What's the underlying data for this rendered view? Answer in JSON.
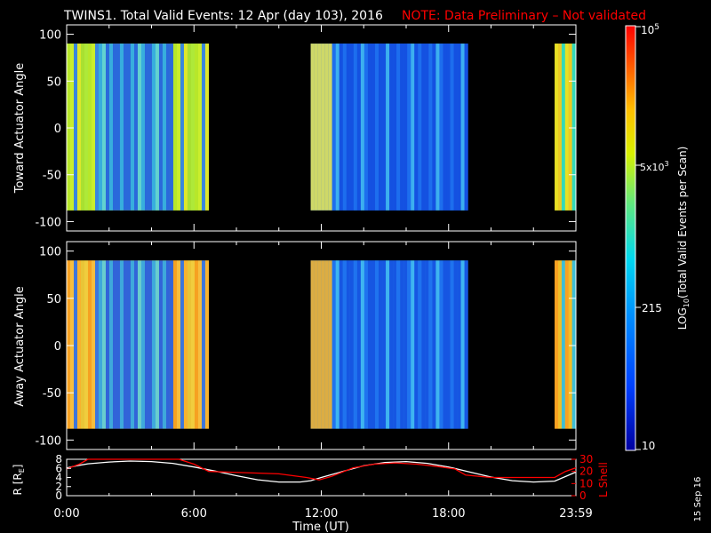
{
  "header": {
    "title": "TWINS1. Total Valid Events: 12 Apr (day 103), 2016",
    "note": "NOTE: Data Preliminary – Not validated"
  },
  "stamp": "15 Sep 16",
  "colors": {
    "background": "#000000",
    "axis": "#ffffff",
    "note": "#ff0000",
    "radius_line": "#ffffff",
    "lshell_line": "#ff0000"
  },
  "chart_data": [
    {
      "type": "heatmap",
      "panel": "toward",
      "ylabel": "Toward Actuator Angle",
      "xlim_hours": [
        0,
        24
      ],
      "ylim": [
        -110,
        110
      ],
      "yticks": [
        -100,
        -50,
        0,
        50,
        100
      ],
      "data_y_range": [
        -88,
        90
      ],
      "data_time_ranges": [
        [
          "0:00",
          "6:42"
        ],
        [
          "11:30",
          "18:55"
        ],
        [
          "23:00",
          "23:59"
        ]
      ]
    },
    {
      "type": "heatmap",
      "panel": "away",
      "ylabel": "Away Actuator Angle",
      "xlim_hours": [
        0,
        24
      ],
      "ylim": [
        -110,
        110
      ],
      "yticks": [
        -100,
        -50,
        0,
        50,
        100
      ],
      "data_y_range": [
        -88,
        90
      ],
      "data_time_ranges": [
        [
          "0:00",
          "6:42"
        ],
        [
          "11:30",
          "18:55"
        ],
        [
          "23:00",
          "23:59"
        ]
      ]
    },
    {
      "type": "line",
      "panel": "orbit",
      "xlabel": "Time (UT)",
      "xticks": [
        "0:00",
        "6:00",
        "12:00",
        "18:00",
        "23:59"
      ],
      "ylabel_left": "R [R",
      "ylabel_left_sub": "E",
      "ylabel_left_end": "]",
      "ylim_left": [
        0,
        8
      ],
      "yticks_left": [
        0,
        2,
        4,
        6,
        8
      ],
      "ylabel_right": "L Shell",
      "ylim_right": [
        0,
        30
      ],
      "yticks_right": [
        0,
        10,
        20,
        30
      ],
      "series": [
        {
          "axis": "left",
          "x_hours": [
            0,
            0.5,
            1,
            2,
            3,
            4,
            5,
            6,
            7,
            8,
            9,
            10,
            11,
            11.5,
            12,
            13,
            14,
            15,
            16,
            17,
            18,
            19,
            20,
            21,
            22,
            23,
            23.5,
            24
          ],
          "values": [
            6.1,
            6.6,
            7.0,
            7.4,
            7.6,
            7.5,
            7.1,
            6.3,
            5.4,
            4.4,
            3.5,
            3.0,
            3.0,
            3.3,
            4.0,
            5.3,
            6.6,
            7.3,
            7.5,
            7.1,
            6.3,
            5.2,
            4.1,
            3.3,
            3.0,
            3.2,
            4.2,
            5.2
          ]
        },
        {
          "axis": "right",
          "x_hours": [
            0,
            0.6,
            1.0,
            4.8,
            5.3,
            6.0,
            6.7,
            10,
            11.3,
            11.9,
            12.5,
            13.5,
            14.5,
            15.5,
            16.5,
            17.5,
            18.3,
            18.8,
            20,
            22.5,
            23.0,
            23.5,
            24
          ],
          "values": [
            22,
            26,
            30,
            30,
            30,
            26,
            20,
            18,
            15,
            13,
            16,
            23,
            26,
            27,
            26,
            24,
            22,
            17,
            15,
            15,
            15,
            20,
            23
          ]
        }
      ]
    }
  ],
  "colorbar": {
    "title": "LOG",
    "title_sub": "10",
    "title_rest": "(Total Valid Events per Scan)",
    "tick_base": "5x10",
    "tick_exp": "3",
    "tick_mid": "215",
    "tick_min": "10",
    "tick_max_base": "10",
    "tick_max_exp": "5"
  }
}
